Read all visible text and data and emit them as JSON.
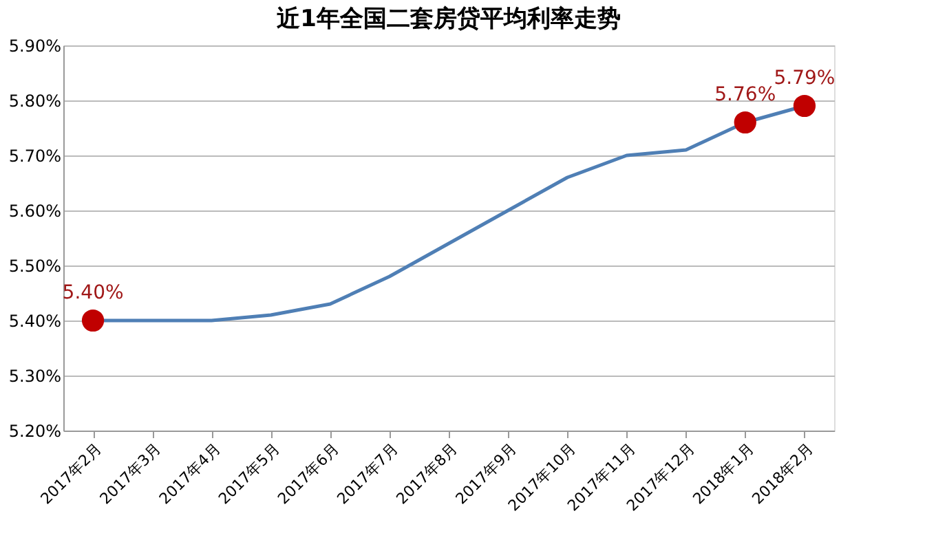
{
  "chart_data": {
    "type": "line",
    "title": "近1年全国二套房贷平均利率走势",
    "categories": [
      "2017年2月",
      "2017年3月",
      "2017年4月",
      "2017年5月",
      "2017年6月",
      "2017年7月",
      "2017年8月",
      "2017年9月",
      "2017年10月",
      "2017年11月",
      "2017年12月",
      "2018年1月",
      "2018年2月"
    ],
    "series": [
      {
        "color": "#4f7fb5",
        "values": [
          5.4,
          5.4,
          5.4,
          5.41,
          5.43,
          5.48,
          5.54,
          5.6,
          5.66,
          5.7,
          5.71,
          5.76,
          5.79
        ],
        "value_labels": [
          "5.40%",
          null,
          null,
          null,
          null,
          null,
          null,
          null,
          null,
          null,
          null,
          "5.76%",
          "5.79%"
        ]
      }
    ],
    "ylim": [
      5.2,
      5.9
    ],
    "yticks": [
      {
        "value": 5.2,
        "label": "5.20%"
      },
      {
        "value": 5.3,
        "label": "5.30%"
      },
      {
        "value": 5.4,
        "label": "5.40%"
      },
      {
        "value": 5.5,
        "label": "5.50%"
      },
      {
        "value": 5.6,
        "label": "5.60%"
      },
      {
        "value": 5.7,
        "label": "5.70%"
      },
      {
        "value": 5.8,
        "label": "5.80%"
      },
      {
        "value": 5.9,
        "label": "5.90%"
      }
    ],
    "grid": "y"
  }
}
